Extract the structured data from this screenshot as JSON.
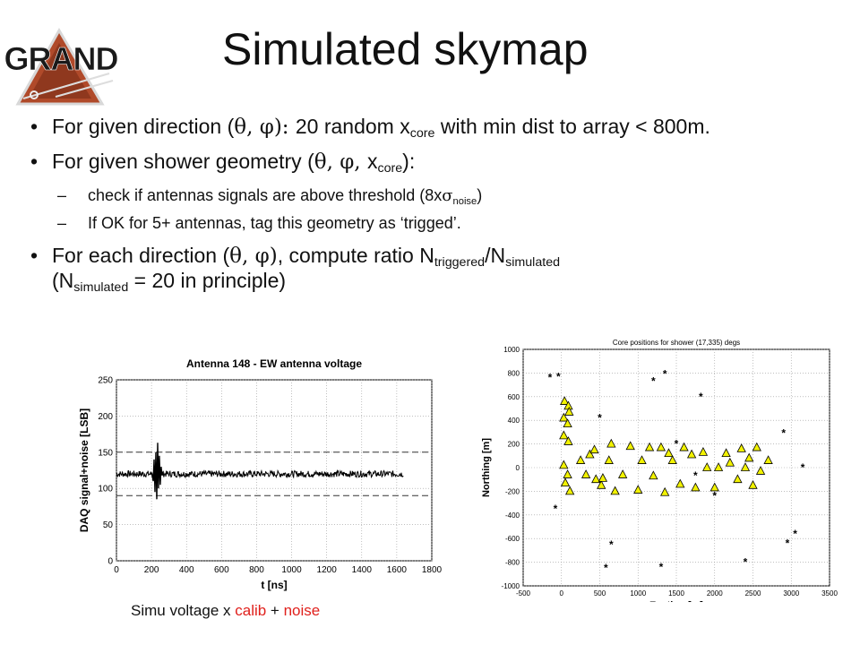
{
  "slide": {
    "title": "Simulated skymap",
    "logo_text": "GRAND",
    "bullets": [
      {
        "pre": "For given direction (",
        "sym": "θ, φ): ",
        "mid": "20 random x",
        "sub": "core",
        "post": " with min dist to array < 800m."
      },
      {
        "pre": "For given shower geometry (",
        "sym": "θ, φ, ",
        "mid": "x",
        "sub": "core",
        "post": "):"
      },
      {
        "pre": "For each direction (",
        "sym": "θ, φ)",
        "mid": ", compute ratio N",
        "sub": "triggered",
        "mid2": "/N",
        "sub2": "simulated",
        "line2_pre": "(N",
        "line2_sub": "simulated",
        "line2_post": " = 20 in principle)"
      }
    ],
    "subbullets": [
      {
        "dash": "–",
        "pre": "check if antennas signals are above threshold (8x",
        "sym": "σ",
        "sub": "noise",
        "post": ")"
      },
      {
        "dash": "–",
        "text": "If OK for 5+ antennas, tag this geometry as ‘trigged’."
      }
    ],
    "caption": {
      "pre": "Simu voltage x ",
      "calib": "calib",
      "plus": " + ",
      "noise": "noise"
    }
  },
  "colors": {
    "red": "#e0201c",
    "triangle_fill": "#f2f200"
  },
  "chart_data": [
    {
      "type": "line",
      "title": "Antenna 148 - EW antenna voltage",
      "xlabel": "t [ns]",
      "ylabel": "DAQ signal+noise [LSB]",
      "xlim": [
        0,
        1800
      ],
      "ylim": [
        0,
        250
      ],
      "xticks": [
        0,
        200,
        400,
        600,
        800,
        1000,
        1200,
        1400,
        1600,
        1800
      ],
      "yticks": [
        0,
        50,
        100,
        150,
        200,
        250
      ],
      "grid": true,
      "baseline": 120,
      "thresholds": [
        150,
        90
      ],
      "signal_xrange": [
        0,
        1640
      ],
      "pulse": [
        [
          200,
          122
        ],
        [
          210,
          110
        ],
        [
          215,
          140
        ],
        [
          220,
          95
        ],
        [
          225,
          150
        ],
        [
          230,
          85
        ],
        [
          235,
          163
        ],
        [
          240,
          100
        ],
        [
          245,
          145
        ],
        [
          250,
          105
        ],
        [
          255,
          130
        ],
        [
          260,
          118
        ]
      ]
    },
    {
      "type": "scatter",
      "title": "Core positions for shower (17,335) degs",
      "xlabel": "Easting [m]",
      "ylabel": "Northing [m]",
      "xlim": [
        -500,
        3500
      ],
      "ylim": [
        -1000,
        1000
      ],
      "xticks": [
        -500,
        0,
        500,
        1000,
        1500,
        2000,
        2500,
        3000,
        3500
      ],
      "yticks": [
        -1000,
        -800,
        -600,
        -400,
        -200,
        0,
        200,
        400,
        600,
        800,
        1000
      ],
      "grid": true,
      "series": [
        {
          "marker": "triangle",
          "points": [
            [
              40,
              560
            ],
            [
              90,
              520
            ],
            [
              100,
              470
            ],
            [
              30,
              420
            ],
            [
              80,
              370
            ],
            [
              30,
              270
            ],
            [
              90,
              220
            ],
            [
              30,
              20
            ],
            [
              80,
              -60
            ],
            [
              50,
              -130
            ],
            [
              110,
              -200
            ],
            [
              250,
              60
            ],
            [
              320,
              -60
            ],
            [
              370,
              110
            ],
            [
              430,
              150
            ],
            [
              450,
              -100
            ],
            [
              520,
              -150
            ],
            [
              540,
              -90
            ],
            [
              620,
              60
            ],
            [
              650,
              200
            ],
            [
              700,
              -200
            ],
            [
              800,
              -60
            ],
            [
              900,
              180
            ],
            [
              1000,
              -190
            ],
            [
              1050,
              60
            ],
            [
              1150,
              170
            ],
            [
              1200,
              -70
            ],
            [
              1300,
              170
            ],
            [
              1350,
              -210
            ],
            [
              1400,
              120
            ],
            [
              1450,
              60
            ],
            [
              1550,
              -140
            ],
            [
              1600,
              170
            ],
            [
              1700,
              110
            ],
            [
              1750,
              -170
            ],
            [
              1850,
              130
            ],
            [
              1900,
              0
            ],
            [
              2000,
              -170
            ],
            [
              2050,
              0
            ],
            [
              2150,
              120
            ],
            [
              2200,
              40
            ],
            [
              2300,
              -100
            ],
            [
              2350,
              160
            ],
            [
              2400,
              0
            ],
            [
              2450,
              80
            ],
            [
              2500,
              -150
            ],
            [
              2550,
              170
            ],
            [
              2600,
              -30
            ],
            [
              2700,
              60
            ]
          ]
        },
        {
          "marker": "star",
          "points": [
            [
              -150,
              760
            ],
            [
              -40,
              770
            ],
            [
              -80,
              -350
            ],
            [
              500,
              420
            ],
            [
              1200,
              730
            ],
            [
              1350,
              790
            ],
            [
              1300,
              -840
            ],
            [
              1500,
              200
            ],
            [
              1750,
              -70
            ],
            [
              1820,
              600
            ],
            [
              2000,
              -240
            ],
            [
              2400,
              -800
            ],
            [
              2900,
              290
            ],
            [
              2950,
              -640
            ],
            [
              3050,
              -560
            ],
            [
              3150,
              0
            ],
            [
              650,
              -650
            ],
            [
              580,
              -850
            ]
          ]
        }
      ]
    }
  ]
}
